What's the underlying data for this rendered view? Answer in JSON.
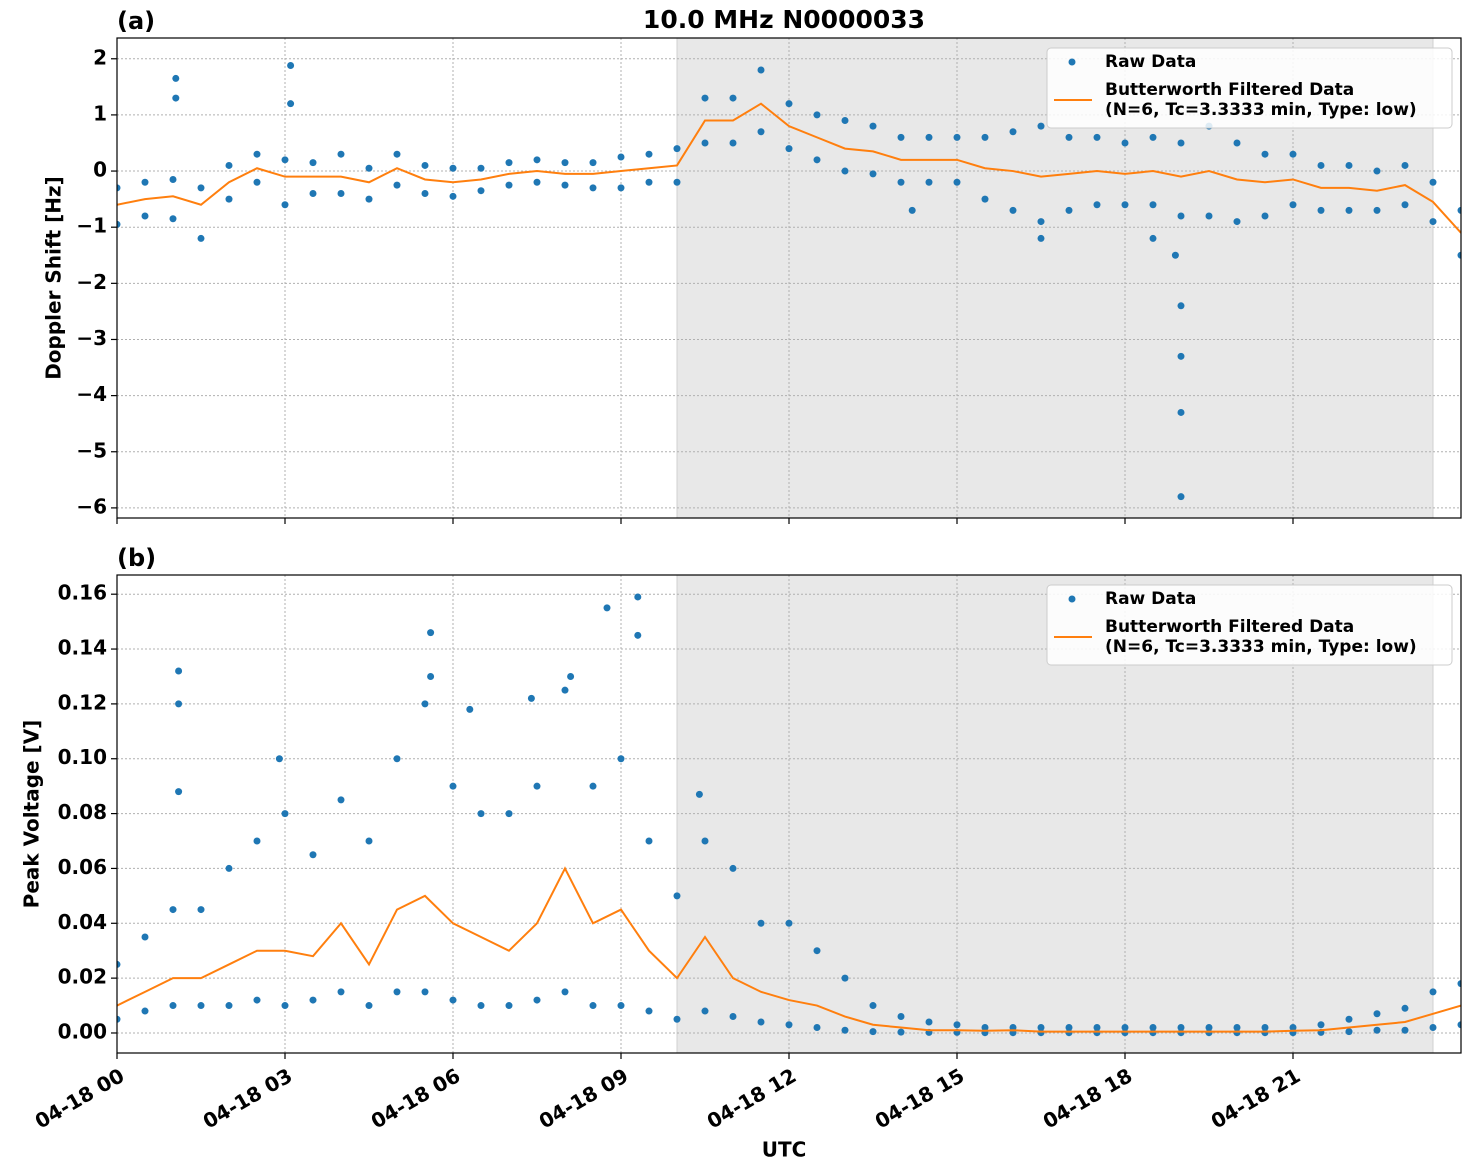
{
  "chart_data": [
    {
      "type": "scatter",
      "panel_label": "(a)",
      "title": "10.0 MHz N0000033",
      "ylabel": "Doppler Shift [Hz]",
      "xlim": [
        0,
        24
      ],
      "ylim": [
        -6.18,
        2.37
      ],
      "yticks": [
        2,
        1,
        0,
        {
          "value": -1,
          "label": "−1"
        },
        {
          "value": -2,
          "label": "−2"
        },
        {
          "value": -3,
          "label": "−3"
        },
        {
          "value": -4,
          "label": "−4"
        },
        {
          "value": -5,
          "label": "−5"
        },
        {
          "value": -6,
          "label": "−6"
        }
      ],
      "grid": true,
      "legend": "upper right",
      "shaded_span": [
        10,
        23.5
      ],
      "series": [
        {
          "name": "Raw Data",
          "color": "#1f77b4",
          "kind": "scatter",
          "x": [
            0,
            0,
            0.5,
            0.5,
            1,
            1,
            1.5,
            1.5,
            2,
            2,
            2.5,
            2.5,
            3,
            3,
            3.5,
            3.5,
            4,
            4,
            4.5,
            4.5,
            5,
            5,
            5.5,
            5.5,
            6,
            6,
            6.5,
            6.5,
            7,
            7,
            7.5,
            7.5,
            8,
            8,
            8.5,
            8.5,
            9,
            9,
            9.5,
            9.5,
            10,
            10,
            10.5,
            10.5,
            11,
            11,
            11.5,
            11.5,
            12,
            12,
            12.5,
            12.5,
            13,
            13,
            13.5,
            13.5,
            14,
            14,
            14.5,
            14.5,
            15,
            15,
            15.5,
            15.5,
            16,
            16,
            16.5,
            16.5,
            17,
            17,
            17.5,
            17.5,
            18,
            18,
            18.5,
            18.5,
            19,
            19,
            19.5,
            19.5,
            20,
            20,
            20.5,
            20.5,
            21,
            21,
            21.5,
            21.5,
            22,
            22,
            22.5,
            22.5,
            23,
            23,
            23.5,
            23.5,
            24,
            24,
            1.05,
            1.05,
            3.1,
            3.1,
            19,
            19,
            19,
            19,
            18.9,
            14.2,
            16.5,
            18.5
          ],
          "values": [
            -0.3,
            -0.95,
            -0.2,
            -0.8,
            -0.15,
            -0.85,
            -0.3,
            -1.2,
            0.1,
            -0.5,
            0.3,
            -0.2,
            0.2,
            -0.6,
            0.15,
            -0.4,
            0.3,
            -0.4,
            0.05,
            -0.5,
            0.3,
            -0.25,
            0.1,
            -0.4,
            0.05,
            -0.45,
            0.05,
            -0.35,
            0.15,
            -0.25,
            0.2,
            -0.2,
            0.15,
            -0.25,
            0.15,
            -0.3,
            0.25,
            -0.3,
            0.3,
            -0.2,
            0.4,
            -0.2,
            1.3,
            0.5,
            1.3,
            0.5,
            1.8,
            0.7,
            1.2,
            0.4,
            1.0,
            0.2,
            0.9,
            0.0,
            0.8,
            -0.05,
            0.6,
            -0.2,
            0.6,
            -0.2,
            0.6,
            -0.2,
            0.6,
            -0.5,
            0.7,
            -0.7,
            0.8,
            -0.9,
            0.6,
            -0.7,
            0.6,
            -0.6,
            0.5,
            -0.6,
            0.6,
            -0.6,
            0.5,
            -0.8,
            0.8,
            -0.8,
            0.5,
            -0.9,
            0.3,
            -0.8,
            0.3,
            -0.6,
            0.1,
            -0.7,
            0.1,
            -0.7,
            0.0,
            -0.7,
            0.1,
            -0.6,
            -0.2,
            -0.9,
            -0.7,
            -1.5,
            1.65,
            1.3,
            1.88,
            1.2,
            -5.8,
            -4.3,
            -3.3,
            -2.4,
            -1.5,
            -0.7,
            -1.2,
            -1.2
          ]
        },
        {
          "name": "Butterworth Filtered Data\n(N=6, Tc=3.3333 min, Type: low)",
          "color": "#ff7f0e",
          "kind": "line",
          "x": [
            0,
            0.5,
            1,
            1.5,
            2,
            2.5,
            3,
            3.5,
            4,
            4.5,
            5,
            5.5,
            6,
            6.5,
            7,
            7.5,
            8,
            8.5,
            9,
            9.5,
            10,
            10.5,
            11,
            11.5,
            12,
            12.5,
            13,
            13.5,
            14,
            14.5,
            15,
            15.5,
            16,
            16.5,
            17,
            17.5,
            18,
            18.5,
            19,
            19.5,
            20,
            20.5,
            21,
            21.5,
            22,
            22.5,
            23,
            23.5,
            24
          ],
          "values": [
            -0.6,
            -0.5,
            -0.45,
            -0.6,
            -0.2,
            0.05,
            -0.1,
            -0.1,
            -0.1,
            -0.2,
            0.05,
            -0.15,
            -0.2,
            -0.15,
            -0.05,
            0,
            -0.05,
            -0.05,
            0,
            0.05,
            0.1,
            0.9,
            0.9,
            1.2,
            0.8,
            0.6,
            0.4,
            0.35,
            0.2,
            0.2,
            0.2,
            0.05,
            0,
            -0.1,
            -0.05,
            0,
            -0.05,
            0,
            -0.1,
            0,
            -0.15,
            -0.2,
            -0.15,
            -0.3,
            -0.3,
            -0.35,
            -0.25,
            -0.55,
            -1.1
          ]
        }
      ]
    },
    {
      "type": "scatter",
      "panel_label": "(b)",
      "ylabel": "Peak Voltage [V]",
      "xlabel": "UTC",
      "xlim": [
        0,
        24
      ],
      "ylim": [
        -0.0073,
        0.167
      ],
      "xticks": [
        {
          "value": 0,
          "label": "04-18 00"
        },
        {
          "value": 3,
          "label": "04-18 03"
        },
        {
          "value": 6,
          "label": "04-18 06"
        },
        {
          "value": 9,
          "label": "04-18 09"
        },
        {
          "value": 12,
          "label": "04-18 12"
        },
        {
          "value": 15,
          "label": "04-18 15"
        },
        {
          "value": 18,
          "label": "04-18 18"
        },
        {
          "value": 21,
          "label": "04-18 21"
        }
      ],
      "yticks": [
        {
          "value": 0,
          "label": "0.00"
        },
        {
          "value": 0.02,
          "label": "0.02"
        },
        {
          "value": 0.04,
          "label": "0.04"
        },
        {
          "value": 0.06,
          "label": "0.06"
        },
        {
          "value": 0.08,
          "label": "0.08"
        },
        {
          "value": 0.1,
          "label": "0.10"
        },
        {
          "value": 0.12,
          "label": "0.12"
        },
        {
          "value": 0.14,
          "label": "0.14"
        },
        {
          "value": 0.16,
          "label": "0.16"
        }
      ],
      "grid": true,
      "legend": "upper right",
      "shaded_span": [
        10,
        23.5
      ],
      "series": [
        {
          "name": "Raw Data",
          "color": "#1f77b4",
          "kind": "scatter",
          "x": [
            0,
            0,
            0.5,
            0.5,
            1,
            1,
            1.5,
            1.5,
            2,
            2,
            2.5,
            2.5,
            3,
            3,
            3.5,
            3.5,
            4,
            4,
            4.5,
            4.5,
            5,
            5,
            5.5,
            5.5,
            6,
            6,
            6.5,
            6.5,
            7,
            7,
            7.5,
            7.5,
            8,
            8,
            8.5,
            8.5,
            9,
            9,
            9.5,
            9.5,
            10,
            10,
            10.5,
            10.5,
            11,
            11,
            11.5,
            11.5,
            12,
            12,
            12.5,
            12.5,
            13,
            13,
            13.5,
            13.5,
            14,
            14,
            14.5,
            14.5,
            15,
            15,
            15.5,
            15.5,
            16,
            16,
            16.5,
            16.5,
            17,
            17,
            17.5,
            17.5,
            18,
            18,
            18.5,
            18.5,
            19,
            19,
            19.5,
            19.5,
            20,
            20,
            20.5,
            20.5,
            21,
            21,
            21.5,
            21.5,
            22,
            22,
            22.5,
            22.5,
            23,
            23,
            23.5,
            23.5,
            24,
            24,
            1.1,
            1.1,
            1.1,
            2.9,
            5.6,
            5.6,
            8.75,
            9.3,
            9.3,
            8.1,
            7.4,
            10.4,
            6.3
          ],
          "values": [
            0.025,
            0.005,
            0.035,
            0.008,
            0.045,
            0.01,
            0.045,
            0.01,
            0.06,
            0.01,
            0.07,
            0.012,
            0.08,
            0.01,
            0.065,
            0.012,
            0.085,
            0.015,
            0.07,
            0.01,
            0.1,
            0.015,
            0.12,
            0.015,
            0.09,
            0.012,
            0.08,
            0.01,
            0.08,
            0.01,
            0.09,
            0.012,
            0.125,
            0.015,
            0.09,
            0.01,
            0.1,
            0.01,
            0.07,
            0.008,
            0.05,
            0.005,
            0.07,
            0.008,
            0.06,
            0.006,
            0.04,
            0.004,
            0.04,
            0.003,
            0.03,
            0.002,
            0.02,
            0.001,
            0.01,
            0.0005,
            0.006,
            0.0003,
            0.004,
            0.0002,
            0.003,
            0.0002,
            0.002,
            0.0001,
            0.002,
            0.0001,
            0.002,
            0.0001,
            0.002,
            0.0001,
            0.002,
            0.0001,
            0.002,
            0.0001,
            0.002,
            0.0001,
            0.002,
            0.0001,
            0.002,
            0.0001,
            0.002,
            0.0001,
            0.002,
            0.0001,
            0.002,
            0.0001,
            0.003,
            0.0002,
            0.005,
            0.0005,
            0.007,
            0.001,
            0.009,
            0.001,
            0.015,
            0.002,
            0.018,
            0.003,
            0.132,
            0.12,
            0.088,
            0.1,
            0.146,
            0.13,
            0.155,
            0.159,
            0.145,
            0.13,
            0.122,
            0.087,
            0.118
          ]
        },
        {
          "name": "Butterworth Filtered Data\n(N=6, Tc=3.3333 min, Type: low)",
          "color": "#ff7f0e",
          "kind": "line",
          "x": [
            0,
            0.5,
            1,
            1.5,
            2,
            2.5,
            3,
            3.5,
            4,
            4.5,
            5,
            5.5,
            6,
            6.5,
            7,
            7.5,
            8,
            8.5,
            9,
            9.5,
            10,
            10.5,
            11,
            11.5,
            12,
            12.5,
            13,
            13.5,
            14,
            14.5,
            15,
            15.5,
            16,
            16.5,
            17,
            17.5,
            18,
            18.5,
            19,
            19.5,
            20,
            20.5,
            21,
            21.5,
            22,
            22.5,
            23,
            23.5,
            24
          ],
          "values": [
            0.01,
            0.015,
            0.02,
            0.02,
            0.025,
            0.03,
            0.03,
            0.028,
            0.04,
            0.025,
            0.045,
            0.05,
            0.04,
            0.035,
            0.03,
            0.04,
            0.06,
            0.04,
            0.045,
            0.03,
            0.02,
            0.035,
            0.02,
            0.015,
            0.012,
            0.01,
            0.006,
            0.003,
            0.002,
            0.001,
            0.001,
            0.0008,
            0.001,
            0.0005,
            0.0005,
            0.0005,
            0.0005,
            0.0005,
            0.0005,
            0.0005,
            0.0005,
            0.0005,
            0.0008,
            0.001,
            0.002,
            0.003,
            0.004,
            0.007,
            0.01
          ]
        }
      ]
    }
  ]
}
